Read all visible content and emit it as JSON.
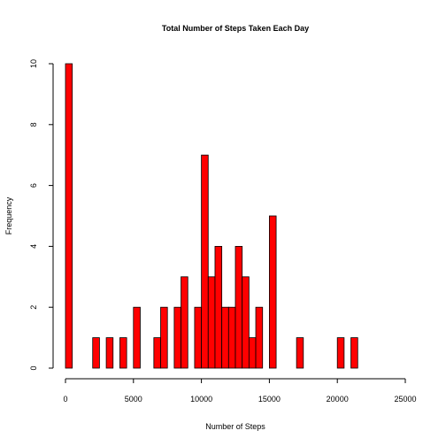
{
  "chart_data": {
    "type": "bar",
    "title": "Total Number of Steps Taken Each Day",
    "xlabel": "Number of Steps",
    "ylabel": "Frequency",
    "bar_color": "#ff0000",
    "bar_border_color": "#000000",
    "bin_width": 500,
    "xlim": [
      0,
      25000
    ],
    "ylim": [
      0,
      10
    ],
    "x_ticks": [
      0,
      5000,
      10000,
      15000,
      20000,
      25000
    ],
    "y_ticks": [
      0,
      2,
      4,
      6,
      8,
      10
    ],
    "bins": [
      {
        "start": 0,
        "count": 10
      },
      {
        "start": 2000,
        "count": 1
      },
      {
        "start": 3000,
        "count": 1
      },
      {
        "start": 4000,
        "count": 1
      },
      {
        "start": 5000,
        "count": 2
      },
      {
        "start": 6500,
        "count": 1
      },
      {
        "start": 7000,
        "count": 2
      },
      {
        "start": 8000,
        "count": 2
      },
      {
        "start": 8500,
        "count": 3
      },
      {
        "start": 9500,
        "count": 2
      },
      {
        "start": 10000,
        "count": 7
      },
      {
        "start": 10500,
        "count": 3
      },
      {
        "start": 11000,
        "count": 4
      },
      {
        "start": 11500,
        "count": 2
      },
      {
        "start": 12000,
        "count": 2
      },
      {
        "start": 12500,
        "count": 4
      },
      {
        "start": 13000,
        "count": 3
      },
      {
        "start": 13500,
        "count": 1
      },
      {
        "start": 14000,
        "count": 2
      },
      {
        "start": 15000,
        "count": 5
      },
      {
        "start": 17000,
        "count": 1
      },
      {
        "start": 20000,
        "count": 1
      },
      {
        "start": 21000,
        "count": 1
      }
    ]
  }
}
